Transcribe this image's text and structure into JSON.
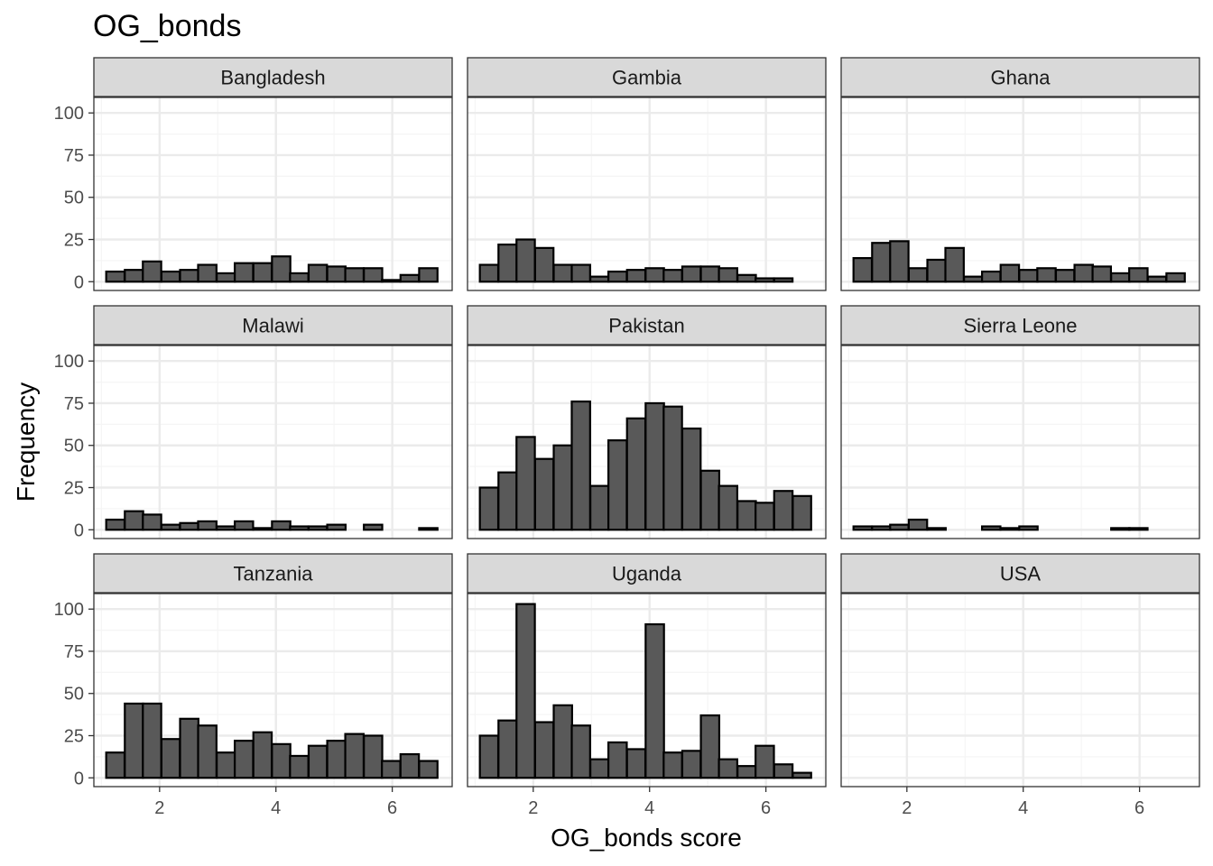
{
  "chart_data": {
    "type": "bar",
    "title": "OG_bonds",
    "xlabel": "OG_bonds score",
    "ylabel": "Frequency",
    "xlim": [
      0.87,
      7.03
    ],
    "ylim": [
      -5.2,
      109.2
    ],
    "x_ticks": [
      2,
      4,
      6
    ],
    "y_ticks": [
      0,
      25,
      50,
      75,
      100
    ],
    "grid": true,
    "bin_width": 0.3158,
    "bin_centers": [
      1.24,
      1.56,
      1.87,
      2.19,
      2.51,
      2.82,
      3.14,
      3.45,
      3.77,
      4.09,
      4.4,
      4.72,
      5.04,
      5.35,
      5.67,
      5.98,
      6.3,
      6.62
    ],
    "panels": [
      {
        "name": "Bangladesh",
        "values": [
          6,
          7,
          12,
          6,
          7,
          10,
          5,
          11,
          11,
          15,
          5,
          10,
          9,
          8,
          8,
          1,
          4,
          8
        ]
      },
      {
        "name": "Gambia",
        "values": [
          10,
          22,
          25,
          20,
          10,
          10,
          3,
          6,
          7,
          8,
          7,
          9,
          9,
          8,
          4,
          2,
          2,
          0
        ]
      },
      {
        "name": "Ghana",
        "values": [
          14,
          23,
          24,
          8,
          13,
          20,
          3,
          6,
          10,
          7,
          8,
          7,
          10,
          9,
          5,
          8,
          3,
          5
        ]
      },
      {
        "name": "Malawi",
        "values": [
          6,
          11,
          9,
          3,
          4,
          5,
          2,
          5,
          1,
          5,
          2,
          2,
          3,
          0,
          3,
          0,
          0,
          1
        ]
      },
      {
        "name": "Pakistan",
        "values": [
          25,
          34,
          55,
          42,
          50,
          76,
          26,
          53,
          66,
          75,
          73,
          60,
          35,
          26,
          17,
          16,
          23,
          20
        ]
      },
      {
        "name": "Sierra Leone",
        "values": [
          2,
          2,
          3,
          6,
          1,
          0,
          0,
          2,
          1,
          2,
          0,
          0,
          0,
          0,
          1,
          1,
          0,
          0
        ]
      },
      {
        "name": "Tanzania",
        "values": [
          15,
          44,
          44,
          23,
          35,
          31,
          15,
          22,
          27,
          20,
          13,
          19,
          22,
          26,
          25,
          10,
          14,
          10
        ]
      },
      {
        "name": "Uganda",
        "values": [
          25,
          34,
          103,
          33,
          43,
          31,
          11,
          21,
          17,
          91,
          15,
          16,
          37,
          11,
          7,
          19,
          8,
          3
        ]
      },
      {
        "name": "USA",
        "values": []
      }
    ],
    "colors": {
      "bar_fill": "#595959",
      "bar_stroke": "#000000",
      "strip_fill": "#d9d9d9",
      "grid_major": "#ebebeb",
      "grid_minor": "#f5f5f5",
      "panel_border": "#333333"
    }
  }
}
